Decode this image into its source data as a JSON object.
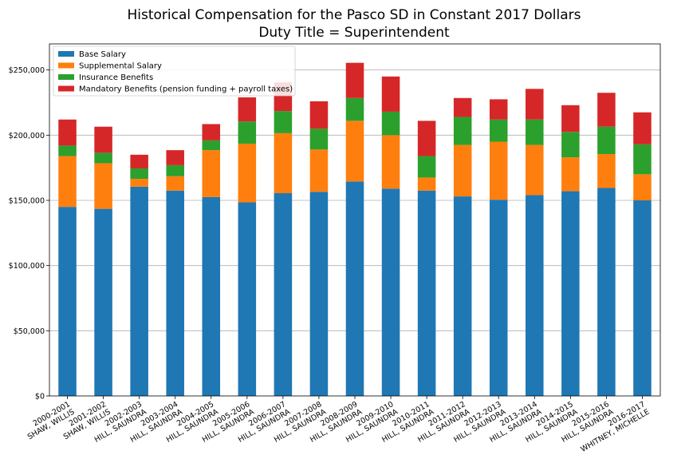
{
  "chart_data": {
    "type": "bar",
    "stacked": true,
    "title": "Historical Compensation for the Pasco SD in Constant 2017 Dollars",
    "subtitle": "Duty Title = Superintendent",
    "xlabel": "",
    "ylabel": "",
    "ylim": [
      0,
      270000
    ],
    "yticks": [
      0,
      50000,
      100000,
      150000,
      200000,
      250000
    ],
    "ytick_labels": [
      "$0",
      "$50,000",
      "$100,000",
      "$150,000",
      "$200,000",
      "$250,000"
    ],
    "grid": "horizontal",
    "legend_position": "top-left",
    "categories": [
      [
        "2000-2001",
        "SHAW, WILLIS"
      ],
      [
        "2001-2002",
        "SHAW, WILLIS"
      ],
      [
        "2002-2003",
        "HILL, SAUNDRA"
      ],
      [
        "2003-2004",
        "HILL, SAUNDRA"
      ],
      [
        "2004-2005",
        "HILL, SAUNDRA"
      ],
      [
        "2005-2006",
        "HILL, SAUNDRA"
      ],
      [
        "2006-2007",
        "HILL, SAUNDRA"
      ],
      [
        "2007-2008",
        "HILL, SAUNDRA"
      ],
      [
        "2008-2009",
        "HILL, SAUNDRA"
      ],
      [
        "2009-2010",
        "HILL, SAUNDRA"
      ],
      [
        "2010-2011",
        "HILL, SAUNDRA"
      ],
      [
        "2011-2012",
        "HILL, SAUNDRA"
      ],
      [
        "2012-2013",
        "HILL, SAUNDRA"
      ],
      [
        "2013-2014",
        "HILL, SAUNDRA"
      ],
      [
        "2014-2015",
        "HILL, SAUNDRA"
      ],
      [
        "2015-2016",
        "HILL, SAUNDRA"
      ],
      [
        "2016-2017",
        "WHITNEY, MICHELLE"
      ]
    ],
    "series": [
      {
        "name": "Base Salary",
        "color": "#1f77b4",
        "values": [
          145000,
          143500,
          160500,
          157500,
          152500,
          148500,
          155500,
          156500,
          164500,
          159000,
          157500,
          153000,
          150500,
          154000,
          157000,
          159500,
          150000
        ]
      },
      {
        "name": "Supplemental Salary",
        "color": "#ff7f0e",
        "values": [
          39000,
          35000,
          6000,
          11000,
          36000,
          45000,
          46000,
          32500,
          46500,
          41000,
          10000,
          39500,
          44500,
          38500,
          26000,
          26000,
          20000
        ]
      },
      {
        "name": "Insurance Benefits",
        "color": "#2ca02c",
        "values": [
          8000,
          8000,
          8000,
          8500,
          7500,
          17000,
          17000,
          16000,
          17500,
          18000,
          16500,
          21500,
          17000,
          19500,
          19500,
          21000,
          23000
        ]
      },
      {
        "name": "Mandatory Benefits (pension funding + payroll taxes)",
        "color": "#d62728",
        "values": [
          20000,
          20000,
          10500,
          11500,
          12500,
          18500,
          22000,
          21000,
          27000,
          27000,
          27000,
          14500,
          15500,
          23500,
          20500,
          26000,
          24500
        ]
      }
    ]
  }
}
